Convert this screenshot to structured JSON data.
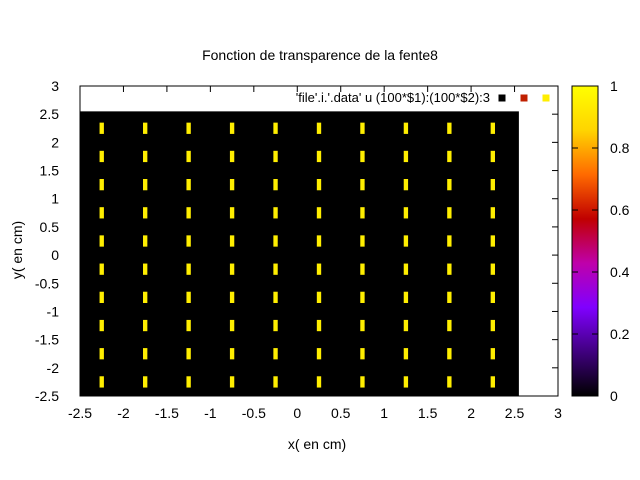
{
  "chart_data": {
    "type": "heatmap",
    "title": "Fonction de transparence de la fente8",
    "xlabel": "x( en cm)",
    "ylabel": "y( en cm)",
    "xlim": [
      -2.5,
      3
    ],
    "ylim": [
      -2.5,
      3
    ],
    "xticks": [
      -2.5,
      -2,
      -1.5,
      -1,
      -0.5,
      0,
      0.5,
      1,
      1.5,
      2,
      2.5,
      3
    ],
    "yticks": [
      -2.5,
      -2,
      -1.5,
      -1,
      -0.5,
      0,
      0.5,
      1,
      1.5,
      2,
      2.5,
      3
    ],
    "xtick_labels": [
      "-2.5",
      "-2",
      "-1.5",
      "-1",
      "-0.5",
      "0",
      "0.5",
      "1",
      "1.5",
      "2",
      "2.5",
      "3"
    ],
    "ytick_labels": [
      "-2.5",
      "-2",
      "-1.5",
      "-1",
      "-0.5",
      "0",
      "0.5",
      "1",
      "1.5",
      "2",
      "2.5",
      "3"
    ],
    "data_extent": {
      "x": [
        -2.5,
        2.55
      ],
      "y": [
        -2.5,
        2.55
      ]
    },
    "background_value": 0,
    "apertures": {
      "value": 1,
      "x_centers": [
        -2.25,
        -1.75,
        -1.25,
        -0.75,
        -0.25,
        0.25,
        0.75,
        1.25,
        1.75,
        2.25
      ],
      "y_centers": [
        2.25,
        1.75,
        1.25,
        0.75,
        0.25,
        -0.25,
        -0.75,
        -1.25,
        -1.75,
        -2.25
      ],
      "width": 0.05,
      "height": 0.2
    },
    "legend": {
      "label": "'file'.i.'.data' u (100*$1):(100*$2):3",
      "position": "top-right",
      "swatch_colors": [
        "#000000",
        "#c02000",
        "#ffee00"
      ]
    },
    "colorbar": {
      "range": [
        0,
        1
      ],
      "ticks": [
        0,
        0.2,
        0.4,
        0.6,
        0.8,
        1
      ],
      "tick_labels": [
        "0",
        "0.2",
        "0.4",
        "0.6",
        "0.8",
        "1"
      ],
      "palette": [
        "#000000",
        "#40007f",
        "#8000ff",
        "#bf00aa",
        "#c00000",
        "#ff6a00",
        "#ffd400",
        "#ffff00"
      ]
    }
  },
  "colors": {
    "background": "#000000",
    "aperture": "#ffee00",
    "axis": "#000000"
  }
}
